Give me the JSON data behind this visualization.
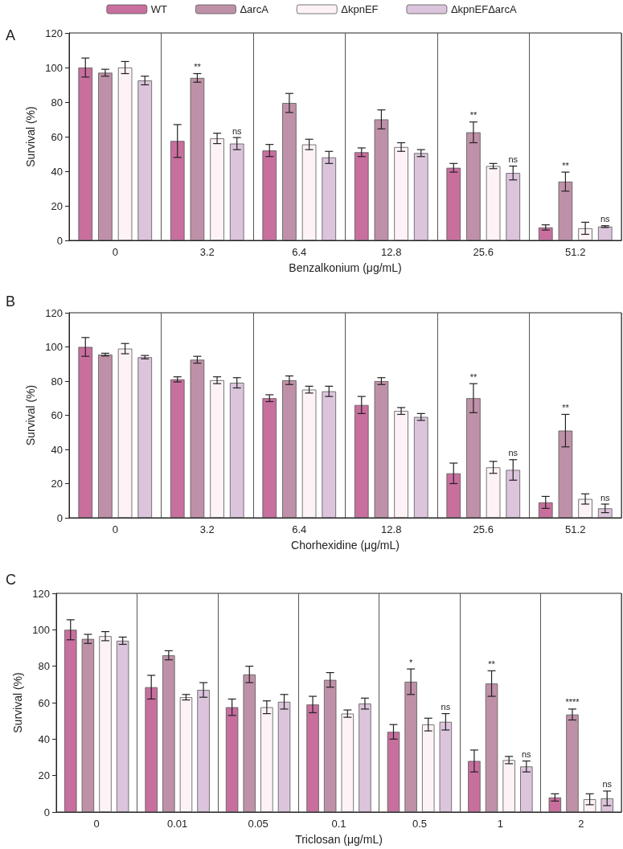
{
  "chart_data": [
    {
      "type": "bar",
      "title": "A",
      "xlabel": "Benzalkonium (μg/mL)",
      "ylabel": "Survival (%)",
      "categories": [
        "0",
        "3.2",
        "6.4",
        "12.8",
        "25.6",
        "51.2"
      ],
      "ylim": [
        0,
        120
      ],
      "yticks": [
        0,
        20,
        40,
        60,
        80,
        100,
        120
      ],
      "grid": "x",
      "legend": "top",
      "series": [
        {
          "name": "WT",
          "color": "#c86f9e",
          "values": [
            100,
            57.5,
            52,
            51,
            42,
            7.5
          ],
          "errors": [
            5.5,
            9.5,
            3.5,
            2.5,
            2.5,
            1.5
          ]
        },
        {
          "name": "ΔarcA",
          "color": "#bf91a8",
          "values": [
            97,
            94,
            79.5,
            70,
            62.5,
            34
          ],
          "errors": [
            2,
            2.5,
            5.5,
            5.5,
            6,
            5.5
          ],
          "value_labels": [
            null,
            "**",
            null,
            null,
            "**",
            "**"
          ]
        },
        {
          "name": "ΔkpnEF",
          "color": "#fdf3f7",
          "values": [
            100,
            59,
            55.5,
            54,
            43,
            7
          ],
          "errors": [
            3.5,
            3,
            3,
            2.5,
            1.5,
            3.5
          ]
        },
        {
          "name": "ΔkpnEFΔarcA",
          "color": "#dcc5dc",
          "values": [
            92.5,
            56,
            48,
            50.5,
            39,
            8
          ],
          "errors": [
            2.5,
            3.5,
            3.5,
            2,
            4,
            0.5
          ],
          "value_labels": [
            null,
            "ns",
            null,
            null,
            "ns",
            "ns"
          ]
        }
      ]
    },
    {
      "type": "bar",
      "title": "B",
      "xlabel": "Chorhexidine (μg/mL)",
      "ylabel": "Survival (%)",
      "categories": [
        "0",
        "3.2",
        "6.4",
        "12.8",
        "25.6",
        "51.2"
      ],
      "ylim": [
        0,
        120
      ],
      "yticks": [
        0,
        20,
        40,
        60,
        80,
        100,
        120
      ],
      "grid": "x",
      "series": [
        {
          "color": "#c86f9e",
          "values": [
            100,
            81,
            70,
            66,
            26,
            9
          ],
          "errors": [
            5.5,
            1.5,
            2,
            5,
            6,
            3.5
          ]
        },
        {
          "color": "#bf91a8",
          "values": [
            95.5,
            92.5,
            80.5,
            80,
            70,
            51
          ],
          "errors": [
            0.8,
            2,
            2.5,
            2,
            8.5,
            9.5
          ],
          "value_labels": [
            null,
            null,
            null,
            null,
            "**",
            "**"
          ]
        },
        {
          "color": "#fdf3f7",
          "values": [
            99,
            80.5,
            75,
            62.5,
            29.5,
            11
          ],
          "errors": [
            3,
            2,
            2,
            2,
            3.5,
            3
          ]
        },
        {
          "color": "#dcc5dc",
          "values": [
            94,
            79,
            74,
            59,
            28,
            5.5
          ],
          "errors": [
            1,
            3,
            3,
            2,
            6,
            2.5
          ],
          "value_labels": [
            null,
            null,
            null,
            null,
            "ns",
            "ns"
          ]
        }
      ]
    },
    {
      "type": "bar",
      "title": "C",
      "xlabel": "Triclosan (μg/mL)",
      "ylabel": "Survival (%)",
      "categories": [
        "0",
        "0.01",
        "0.05",
        "0.1",
        "0.5",
        "1",
        "2"
      ],
      "ylim": [
        0,
        120
      ],
      "yticks": [
        0,
        20,
        40,
        60,
        80,
        100,
        120
      ],
      "grid": "x",
      "series": [
        {
          "color": "#c86f9e",
          "values": [
            100,
            68.5,
            57.5,
            59,
            44,
            28,
            8
          ],
          "errors": [
            5.5,
            6.5,
            4.5,
            4.5,
            4,
            6,
            2
          ]
        },
        {
          "color": "#bf91a8",
          "values": [
            95,
            86,
            75.5,
            72.5,
            71.5,
            70.5,
            53.5
          ],
          "errors": [
            2.5,
            2.5,
            4.5,
            4,
            7,
            7,
            3
          ],
          "value_labels": [
            null,
            null,
            null,
            null,
            "*",
            "**",
            "****"
          ]
        },
        {
          "color": "#fdf3f7",
          "values": [
            96.5,
            63,
            57.5,
            54,
            48,
            28.5,
            7
          ],
          "errors": [
            2.5,
            1.5,
            3.5,
            2,
            3.5,
            2,
            3
          ]
        },
        {
          "color": "#dcc5dc",
          "values": [
            94,
            67,
            60.5,
            59.5,
            49.5,
            25,
            7.5
          ],
          "errors": [
            2,
            4,
            4,
            3,
            4.5,
            3,
            4
          ],
          "value_labels": [
            null,
            null,
            null,
            null,
            "ns",
            "ns",
            "ns"
          ]
        }
      ]
    }
  ]
}
